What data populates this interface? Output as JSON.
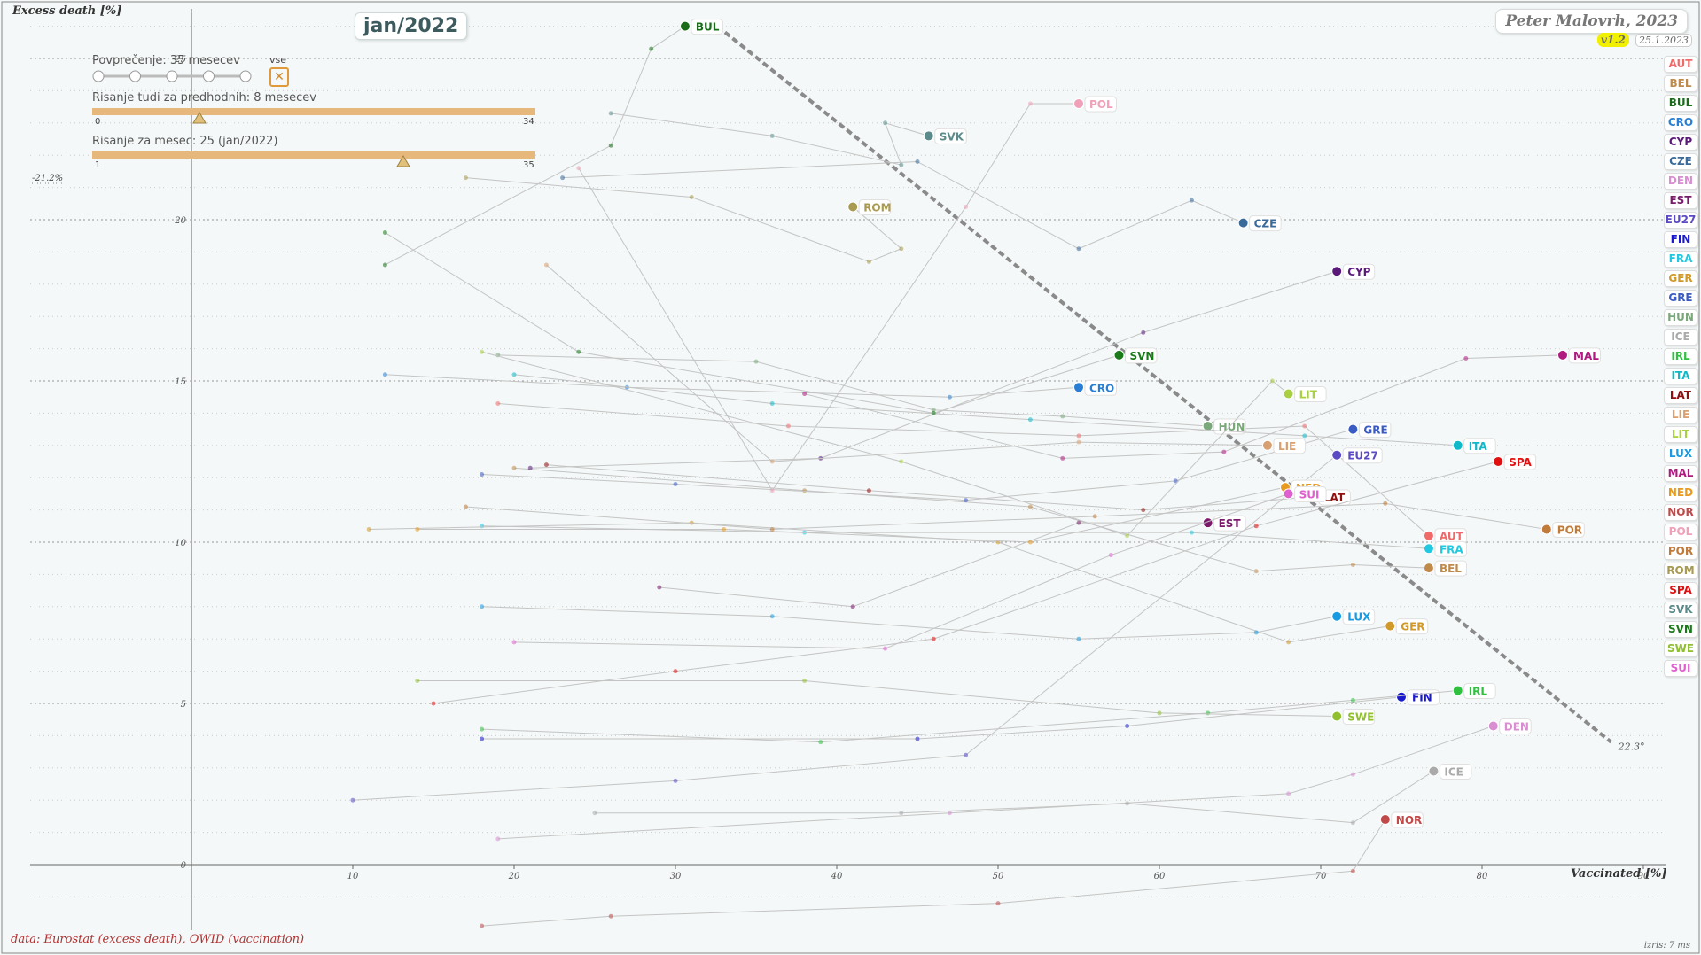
{
  "header": {
    "month": "jan/2022",
    "author": "Peter Malovrh, 2023",
    "version": "v1.2",
    "date": "25.1.2023"
  },
  "controls": {
    "averaging_label": "Povprečenje: 35 mesecev",
    "averaging_all": "vse",
    "averaging_steps": 5,
    "close_symbol": "✕",
    "previous_label": "Risanje tudi za predhodnih: 8 mesecev",
    "previous_min": "0",
    "previous_max": "34",
    "previous_value": 8,
    "month_label": "Risanje za mesec: 25 (jan/2022)",
    "month_min": "1",
    "month_max": "35",
    "month_value": 25
  },
  "footer": {
    "source": "data: Eurostat (excess death), OWID (vaccination)",
    "timing": "izris: 7 ms"
  },
  "chart_data": {
    "type": "scatter",
    "xlabel": "Vaccinated [%]",
    "ylabel": "Excess death [%]",
    "xlim": [
      -10,
      95
    ],
    "ylim": [
      -2,
      26
    ],
    "xticks": [
      10,
      20,
      30,
      40,
      50,
      60,
      70,
      80,
      90
    ],
    "yticks": [
      0,
      5,
      10,
      15,
      20,
      25
    ],
    "grid": "horizontal-dotted",
    "legend_position": "right",
    "annotations": {
      "y_offaxis_label": "-21.2%",
      "trend_angle_label": "22.3°"
    },
    "trend_line": {
      "x": [
        32.6,
        88
      ],
      "y": [
        26,
        3.8
      ]
    },
    "series": [
      {
        "name": "AUT",
        "color": "#f06a6a",
        "x": [
          19,
          37,
          55,
          69,
          76.7
        ],
        "y": [
          14.3,
          13.6,
          13.3,
          13.6,
          10.2
        ]
      },
      {
        "name": "BEL",
        "color": "#c08a4a",
        "x": [
          20,
          38,
          52,
          66,
          72,
          76.7
        ],
        "y": [
          12.3,
          11.6,
          11.1,
          9.1,
          9.3,
          9.2
        ]
      },
      {
        "name": "BUL",
        "color": "#1a6b1a",
        "x": [
          12,
          26,
          28.5,
          30.6
        ],
        "y": [
          18.6,
          22.3,
          25.3,
          26
        ]
      },
      {
        "name": "CRO",
        "color": "#2a7fd4",
        "x": [
          12,
          27,
          47,
          55
        ],
        "y": [
          15.2,
          14.8,
          14.5,
          14.8
        ]
      },
      {
        "name": "CYP",
        "color": "#5a1a7a",
        "x": [
          21,
          39,
          59,
          71
        ],
        "y": [
          12.3,
          12.6,
          16.5,
          18.4
        ]
      },
      {
        "name": "CZE",
        "color": "#3a6a9a",
        "x": [
          23,
          45,
          55,
          62,
          65.2
        ],
        "y": [
          21.3,
          21.8,
          19.1,
          20.6,
          19.9
        ]
      },
      {
        "name": "DEN",
        "color": "#d98ed1",
        "x": [
          19,
          47,
          68,
          72,
          80.7
        ],
        "y": [
          0.8,
          1.6,
          2.2,
          2.8,
          4.3
        ]
      },
      {
        "name": "EST",
        "color": "#7a1a6a",
        "x": [
          29,
          41,
          55,
          63
        ],
        "y": [
          8.6,
          8.0,
          10.6,
          10.6
        ]
      },
      {
        "name": "EU27",
        "color": "#5a4ac4",
        "x": [
          10,
          30,
          48,
          71
        ],
        "y": [
          2.0,
          2.6,
          3.4,
          12.7
        ]
      },
      {
        "name": "FIN",
        "color": "#1a1acc",
        "x": [
          18,
          45,
          58,
          75
        ],
        "y": [
          3.9,
          3.9,
          4.3,
          5.2
        ]
      },
      {
        "name": "FRA",
        "color": "#20c8e0",
        "x": [
          18,
          38,
          62,
          76.7
        ],
        "y": [
          10.5,
          10.3,
          10.3,
          9.8
        ]
      },
      {
        "name": "GER",
        "color": "#d09a2a",
        "x": [
          11,
          31,
          50,
          68,
          74.3
        ],
        "y": [
          10.4,
          10.6,
          10.0,
          6.9,
          7.4
        ]
      },
      {
        "name": "GRE",
        "color": "#3a5ac4",
        "x": [
          18,
          30,
          48,
          61,
          72
        ],
        "y": [
          12.1,
          11.8,
          11.3,
          11.9,
          13.5
        ]
      },
      {
        "name": "HUN",
        "color": "#7aa87a",
        "x": [
          19,
          35,
          46,
          54,
          63
        ],
        "y": [
          15.8,
          15.6,
          14.1,
          13.9,
          13.6
        ]
      },
      {
        "name": "ICE",
        "color": "#aaaaaa",
        "x": [
          25,
          44,
          58,
          72,
          77
        ],
        "y": [
          1.6,
          1.6,
          1.9,
          1.3,
          2.9
        ]
      },
      {
        "name": "IRL",
        "color": "#30c040",
        "x": [
          18,
          39,
          63,
          72,
          78.5
        ],
        "y": [
          4.2,
          3.8,
          4.7,
          5.1,
          5.4
        ]
      },
      {
        "name": "ITA",
        "color": "#10b8c8",
        "x": [
          20,
          36,
          52,
          69,
          78.5
        ],
        "y": [
          15.2,
          14.3,
          13.8,
          13.3,
          13.0
        ]
      },
      {
        "name": "LAT",
        "color": "#901010",
        "x": [
          22,
          42,
          59,
          69.5
        ],
        "y": [
          12.4,
          11.6,
          11.0,
          11.4
        ]
      },
      {
        "name": "LIE",
        "color": "#d8a070",
        "x": [
          22,
          36,
          55,
          66.7
        ],
        "y": [
          18.6,
          12.5,
          13.1,
          13.0
        ]
      },
      {
        "name": "LIT",
        "color": "#a8d040",
        "x": [
          18,
          44,
          58,
          67,
          68
        ],
        "y": [
          15.9,
          12.5,
          10.2,
          15.0,
          14.6
        ]
      },
      {
        "name": "LUX",
        "color": "#1a9ae0",
        "x": [
          18,
          36,
          55,
          66,
          71
        ],
        "y": [
          8.0,
          7.7,
          7.0,
          7.2,
          7.7
        ]
      },
      {
        "name": "MAL",
        "color": "#b01a80",
        "x": [
          38,
          54,
          64,
          79,
          85
        ],
        "y": [
          14.6,
          12.6,
          12.8,
          15.7,
          15.8
        ]
      },
      {
        "name": "NED",
        "color": "#e89a20",
        "x": [
          14,
          33,
          52,
          67.8
        ],
        "y": [
          10.4,
          10.4,
          10.0,
          11.7
        ]
      },
      {
        "name": "NOR",
        "color": "#c04a4a",
        "x": [
          18,
          26,
          50,
          72,
          74
        ],
        "y": [
          -1.9,
          -1.6,
          -1.2,
          -0.2,
          1.4
        ]
      },
      {
        "name": "POL",
        "color": "#f0a0b8",
        "x": [
          24,
          36,
          48,
          52,
          55
        ],
        "y": [
          21.6,
          11.6,
          20.4,
          23.6,
          23.6
        ]
      },
      {
        "name": "POR",
        "color": "#c07a3a",
        "x": [
          17,
          36,
          56,
          74,
          84
        ],
        "y": [
          11.1,
          10.4,
          10.8,
          11.2,
          10.4
        ]
      },
      {
        "name": "ROM",
        "color": "#a89a50",
        "x": [
          17,
          31,
          42,
          44,
          41
        ],
        "y": [
          21.3,
          20.7,
          18.7,
          19.1,
          20.4
        ]
      },
      {
        "name": "SPA",
        "color": "#e01010",
        "x": [
          15,
          30,
          46,
          66,
          81
        ],
        "y": [
          5.0,
          6.0,
          7.0,
          10.5,
          12.5
        ]
      },
      {
        "name": "SVK",
        "color": "#5a8a8a",
        "x": [
          26,
          36,
          44,
          43,
          45.7
        ],
        "y": [
          23.3,
          22.6,
          21.7,
          23.0,
          22.6
        ]
      },
      {
        "name": "SVN",
        "color": "#1a7a1a",
        "x": [
          12,
          24,
          46,
          57.5
        ],
        "y": [
          19.6,
          15.9,
          14.0,
          15.8
        ]
      },
      {
        "name": "SWE",
        "color": "#90c030",
        "x": [
          14,
          38,
          60,
          71
        ],
        "y": [
          5.7,
          5.7,
          4.7,
          4.6
        ]
      },
      {
        "name": "SUI",
        "color": "#e060d0",
        "x": [
          20,
          43,
          57,
          68
        ],
        "y": [
          6.9,
          6.7,
          9.6,
          11.5
        ]
      }
    ]
  },
  "legend": [
    "AUT",
    "BEL",
    "BUL",
    "CRO",
    "CYP",
    "CZE",
    "DEN",
    "EST",
    "EU27",
    "FIN",
    "FRA",
    "GER",
    "GRE",
    "HUN",
    "ICE",
    "IRL",
    "ITA",
    "LAT",
    "LIE",
    "LIT",
    "LUX",
    "MAL",
    "NED",
    "NOR",
    "POL",
    "POR",
    "ROM",
    "SPA",
    "SVK",
    "SVN",
    "SWE",
    "SUI"
  ]
}
